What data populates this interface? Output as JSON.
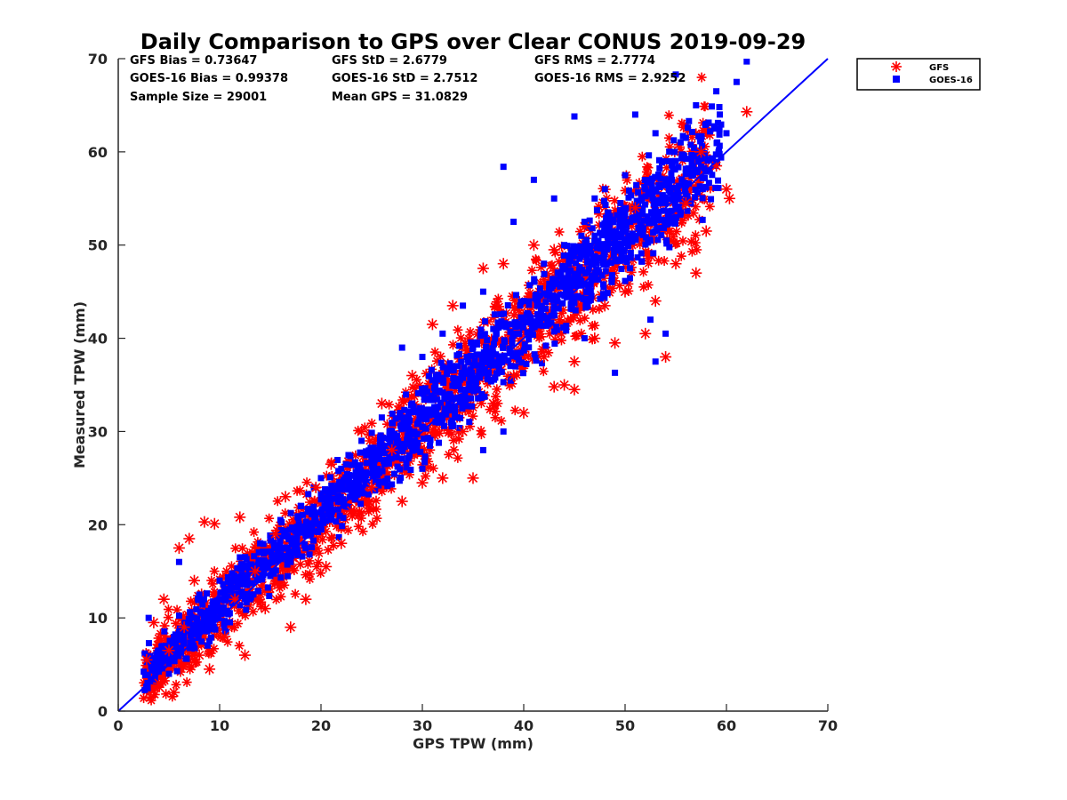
{
  "chart_data": {
    "type": "scatter",
    "title": "Daily Comparison to GPS over Clear CONUS 2019-09-29",
    "xlabel": "GPS TPW (mm)",
    "ylabel": "Measured TPW (mm)",
    "xlim": [
      0,
      70
    ],
    "ylim": [
      0,
      70
    ],
    "xticks": [
      "0",
      "10",
      "20",
      "30",
      "40",
      "50",
      "60",
      "70"
    ],
    "yticks": [
      "0",
      "10",
      "20",
      "30",
      "40",
      "50",
      "60",
      "70"
    ],
    "grid": false,
    "legend_position": "outside-top-right",
    "stats": [
      "GFS Bias = 0.73647",
      "GFS StD = 2.6779",
      "GFS RMS = 2.7774",
      "GOES-16 Bias = 0.99378",
      "GOES-16 StD = 2.7512",
      "GOES-16 RMS = 2.9252",
      "Sample Size = 29001",
      "Mean GPS = 31.0829"
    ],
    "reference_line": {
      "name": "1:1 line",
      "from": [
        0,
        0
      ],
      "to": [
        70,
        70
      ],
      "color": "#0000ff"
    },
    "series": [
      {
        "name": "GFS",
        "marker": "asterisk",
        "color": "#ff0000",
        "points": [
          [
            2.8,
            5.5
          ],
          [
            3.2,
            1.5
          ],
          [
            3.5,
            9.5
          ],
          [
            4.0,
            3.0
          ],
          [
            4.5,
            12.0
          ],
          [
            5.0,
            6.5
          ],
          [
            5.5,
            2.0
          ],
          [
            6.0,
            17.5
          ],
          [
            7.0,
            18.5
          ],
          [
            8.5,
            20.3
          ],
          [
            9.5,
            20.1
          ],
          [
            7.5,
            14.0
          ],
          [
            6.5,
            9.0
          ],
          [
            8.0,
            6.0
          ],
          [
            9.0,
            4.5
          ],
          [
            10.5,
            8.0
          ],
          [
            11.5,
            12.0
          ],
          [
            12.0,
            20.8
          ],
          [
            12.5,
            6.0
          ],
          [
            13.5,
            15.0
          ],
          [
            14.5,
            11.0
          ],
          [
            15.5,
            19.0
          ],
          [
            16.5,
            23.0
          ],
          [
            17.0,
            9.0
          ],
          [
            18.5,
            12.0
          ],
          [
            19.5,
            24.0
          ],
          [
            20.5,
            15.5
          ],
          [
            21.0,
            26.5
          ],
          [
            22.0,
            18.0
          ],
          [
            23.0,
            21.5
          ],
          [
            24.0,
            30.0
          ],
          [
            25.0,
            24.0
          ],
          [
            26.0,
            33.0
          ],
          [
            27.0,
            28.0
          ],
          [
            28.0,
            22.5
          ],
          [
            29.0,
            36.0
          ],
          [
            30.0,
            24.5
          ],
          [
            31.0,
            41.5
          ],
          [
            32.0,
            25.0
          ],
          [
            33.0,
            43.5
          ],
          [
            34.0,
            30.0
          ],
          [
            35.0,
            25.0
          ],
          [
            36.0,
            47.5
          ],
          [
            37.0,
            33.0
          ],
          [
            38.0,
            48.0
          ],
          [
            39.0,
            36.0
          ],
          [
            40.0,
            32.0
          ],
          [
            41.0,
            50.0
          ],
          [
            42.0,
            38.0
          ],
          [
            43.0,
            49.5
          ],
          [
            44.0,
            35.0
          ],
          [
            45.0,
            37.5
          ],
          [
            46.0,
            52.0
          ],
          [
            47.0,
            40.0
          ],
          [
            48.0,
            43.5
          ],
          [
            49.0,
            39.5
          ],
          [
            50.0,
            45.0
          ],
          [
            51.0,
            54.0
          ],
          [
            52.0,
            40.5
          ],
          [
            53.0,
            44.0
          ],
          [
            54.0,
            38.0
          ],
          [
            55.0,
            48.0
          ],
          [
            56.0,
            54.5
          ],
          [
            57.0,
            47.0
          ],
          [
            58.0,
            51.5
          ],
          [
            59.0,
            58.5
          ],
          [
            60.0,
            56.0
          ],
          [
            60.3,
            55.0
          ],
          [
            62.0,
            64.3
          ],
          [
            57.5,
            60.0
          ],
          [
            45.0,
            34.5
          ],
          [
            43.0,
            34.8
          ]
        ]
      },
      {
        "name": "GOES-16",
        "marker": "square",
        "color": "#0000ff",
        "points": [
          [
            3.0,
            10.0
          ],
          [
            4.0,
            6.5
          ],
          [
            5.0,
            4.0
          ],
          [
            6.0,
            16.0
          ],
          [
            7.0,
            9.5
          ],
          [
            8.0,
            12.5
          ],
          [
            9.0,
            7.5
          ],
          [
            10.0,
            14.0
          ],
          [
            11.0,
            10.5
          ],
          [
            12.0,
            16.5
          ],
          [
            13.0,
            12.0
          ],
          [
            14.0,
            18.0
          ],
          [
            15.0,
            14.5
          ],
          [
            16.0,
            20.5
          ],
          [
            17.0,
            16.0
          ],
          [
            18.0,
            22.0
          ],
          [
            19.0,
            19.0
          ],
          [
            20.0,
            25.0
          ],
          [
            21.0,
            21.0
          ],
          [
            22.0,
            26.0
          ],
          [
            23.0,
            23.5
          ],
          [
            24.0,
            29.0
          ],
          [
            25.0,
            27.0
          ],
          [
            26.0,
            31.5
          ],
          [
            27.0,
            30.0
          ],
          [
            28.0,
            39.0
          ],
          [
            29.0,
            33.0
          ],
          [
            30.0,
            38.0
          ],
          [
            31.0,
            35.5
          ],
          [
            32.0,
            40.5
          ],
          [
            33.0,
            37.0
          ],
          [
            34.0,
            43.5
          ],
          [
            35.0,
            39.0
          ],
          [
            36.0,
            45.0
          ],
          [
            37.0,
            41.0
          ],
          [
            38.0,
            58.4
          ],
          [
            39.0,
            52.5
          ],
          [
            40.0,
            44.0
          ],
          [
            41.0,
            57.0
          ],
          [
            42.0,
            48.0
          ],
          [
            43.0,
            55.0
          ],
          [
            44.0,
            50.0
          ],
          [
            45.0,
            63.8
          ],
          [
            46.0,
            52.5
          ],
          [
            47.0,
            55.0
          ],
          [
            48.0,
            56.0
          ],
          [
            49.0,
            51.0
          ],
          [
            50.0,
            57.5
          ],
          [
            51.0,
            64.0
          ],
          [
            52.0,
            56.0
          ],
          [
            53.0,
            62.0
          ],
          [
            54.0,
            59.0
          ],
          [
            55.0,
            68.3
          ],
          [
            56.0,
            61.5
          ],
          [
            57.0,
            65.0
          ],
          [
            58.0,
            63.0
          ],
          [
            59.0,
            66.5
          ],
          [
            60.0,
            62.0
          ],
          [
            61.0,
            67.5
          ],
          [
            62.0,
            69.7
          ],
          [
            52.5,
            42.0
          ],
          [
            54.0,
            40.5
          ],
          [
            53.0,
            37.5
          ],
          [
            49.0,
            36.3
          ],
          [
            36.0,
            28.0
          ],
          [
            30.0,
            26.0
          ],
          [
            38.0,
            30.0
          ],
          [
            46.0,
            40.0
          ]
        ]
      }
    ]
  }
}
